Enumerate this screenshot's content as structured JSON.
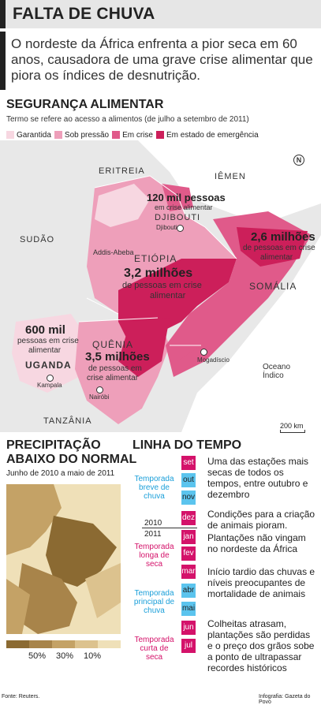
{
  "header": {
    "title": "FALTA DE CHUVA"
  },
  "intro": "O nordeste da África enfrenta a pior seca em 60 anos, causadora de uma grave crise alimentar que piora os índices de desnutrição.",
  "food_security": {
    "title": "SEGURANÇA ALIMENTAR",
    "subtitle": "Termo se refere ao acesso a alimentos (de julho a setembro de 2011)",
    "legend": [
      {
        "label": "Garantida",
        "color": "#f7d7e1"
      },
      {
        "label": "Sob pressão",
        "color": "#ee9fba"
      },
      {
        "label": "Em crise",
        "color": "#e05a8a"
      },
      {
        "label": "Em estado de emergência",
        "color": "#cc1f5a"
      }
    ],
    "countries": {
      "eritrea": "ERITREIA",
      "yemen": "IÊMEN",
      "sudan": "SUDÃO",
      "djibouti": "DJIBOUTI",
      "ethiopia": "ETIÓPIA",
      "somalia": "SOMÁLIA",
      "kenya": "QUÊNIA",
      "uganda": "UGANDA",
      "tanzania": "TANZÂNIA"
    },
    "cities": {
      "djibouti": "Djibouti",
      "addis": "Addis-Abeba",
      "mogadishu": "Mogadíscio",
      "kampala": "Kampala",
      "nairobi": "Nairóbi"
    },
    "ocean": "Oceano Índico",
    "compass": "N",
    "scale": "200 km",
    "callouts": {
      "djibouti_num": "120 mil pessoas",
      "djibouti_txt": "em crise alimentar",
      "ethiopia_num": "3,2 milhões",
      "ethiopia_txt1": "de pessoas em crise",
      "ethiopia_txt2": "alimentar",
      "somalia_num": "2,6 milhões",
      "somalia_txt1": "de pessoas em crise",
      "somalia_txt2": "alimentar",
      "uganda_num": "600 mil",
      "uganda_txt1": "pessoas em crise",
      "uganda_txt2": "alimentar",
      "kenya_num": "3,5 milhões",
      "kenya_txt1": "de pessoas em",
      "kenya_txt2": "crise alimentar"
    }
  },
  "precipitation": {
    "title1": "PRECIPITAÇÃO",
    "title2": "ABAIXO DO NORMAL",
    "subtitle": "Junho de 2010 a maio de 2011",
    "scale_ticks": [
      "50%",
      "30%",
      "10%"
    ],
    "scale_colors": [
      "#8b6a32",
      "#a8844a",
      "#c4a266",
      "#dcc28e",
      "#efe0b8"
    ]
  },
  "timeline": {
    "title": "LINHA DO TEMPO",
    "months": [
      {
        "label": "set",
        "color": "#d4126a"
      },
      {
        "label": "out",
        "color": "#5bc4ee"
      },
      {
        "label": "nov",
        "color": "#5bc4ee"
      },
      {
        "label": "dez",
        "color": "#d4126a"
      },
      {
        "label": "jan",
        "color": "#d4126a"
      },
      {
        "label": "fev",
        "color": "#d4126a"
      },
      {
        "label": "mar",
        "color": "#d4126a"
      },
      {
        "label": "abr",
        "color": "#5bc4ee"
      },
      {
        "label": "mai",
        "color": "#5bc4ee"
      },
      {
        "label": "jun",
        "color": "#d4126a"
      },
      {
        "label": "jul",
        "color": "#d4126a"
      }
    ],
    "years": [
      "2010",
      "2011"
    ],
    "seasons": [
      {
        "label": "Temporada breve de chuva",
        "kind": "rain"
      },
      {
        "label": "Temporada longa de seca",
        "kind": "dry"
      },
      {
        "label": "Temporada principal de chuva",
        "kind": "rain"
      },
      {
        "label": "Temporada curta de seca",
        "kind": "dry"
      }
    ],
    "events": [
      "Uma das estações mais secas de todos os tempos, entre outubro e dezembro",
      "Condições para a criação de animais pioram.",
      "Plantações não vingam no nordeste da África",
      "Início tardio das chuvas e níveis preocupantes de mortalidade de animais",
      "Colheitas atrasam, plantações são perdidas e o preço dos grãos sobe a ponto de ultrapassar recordes históricos"
    ]
  },
  "footer": {
    "source": "Fonte: Reuters.",
    "credit": "Infografia: Gazeta do Povo"
  }
}
